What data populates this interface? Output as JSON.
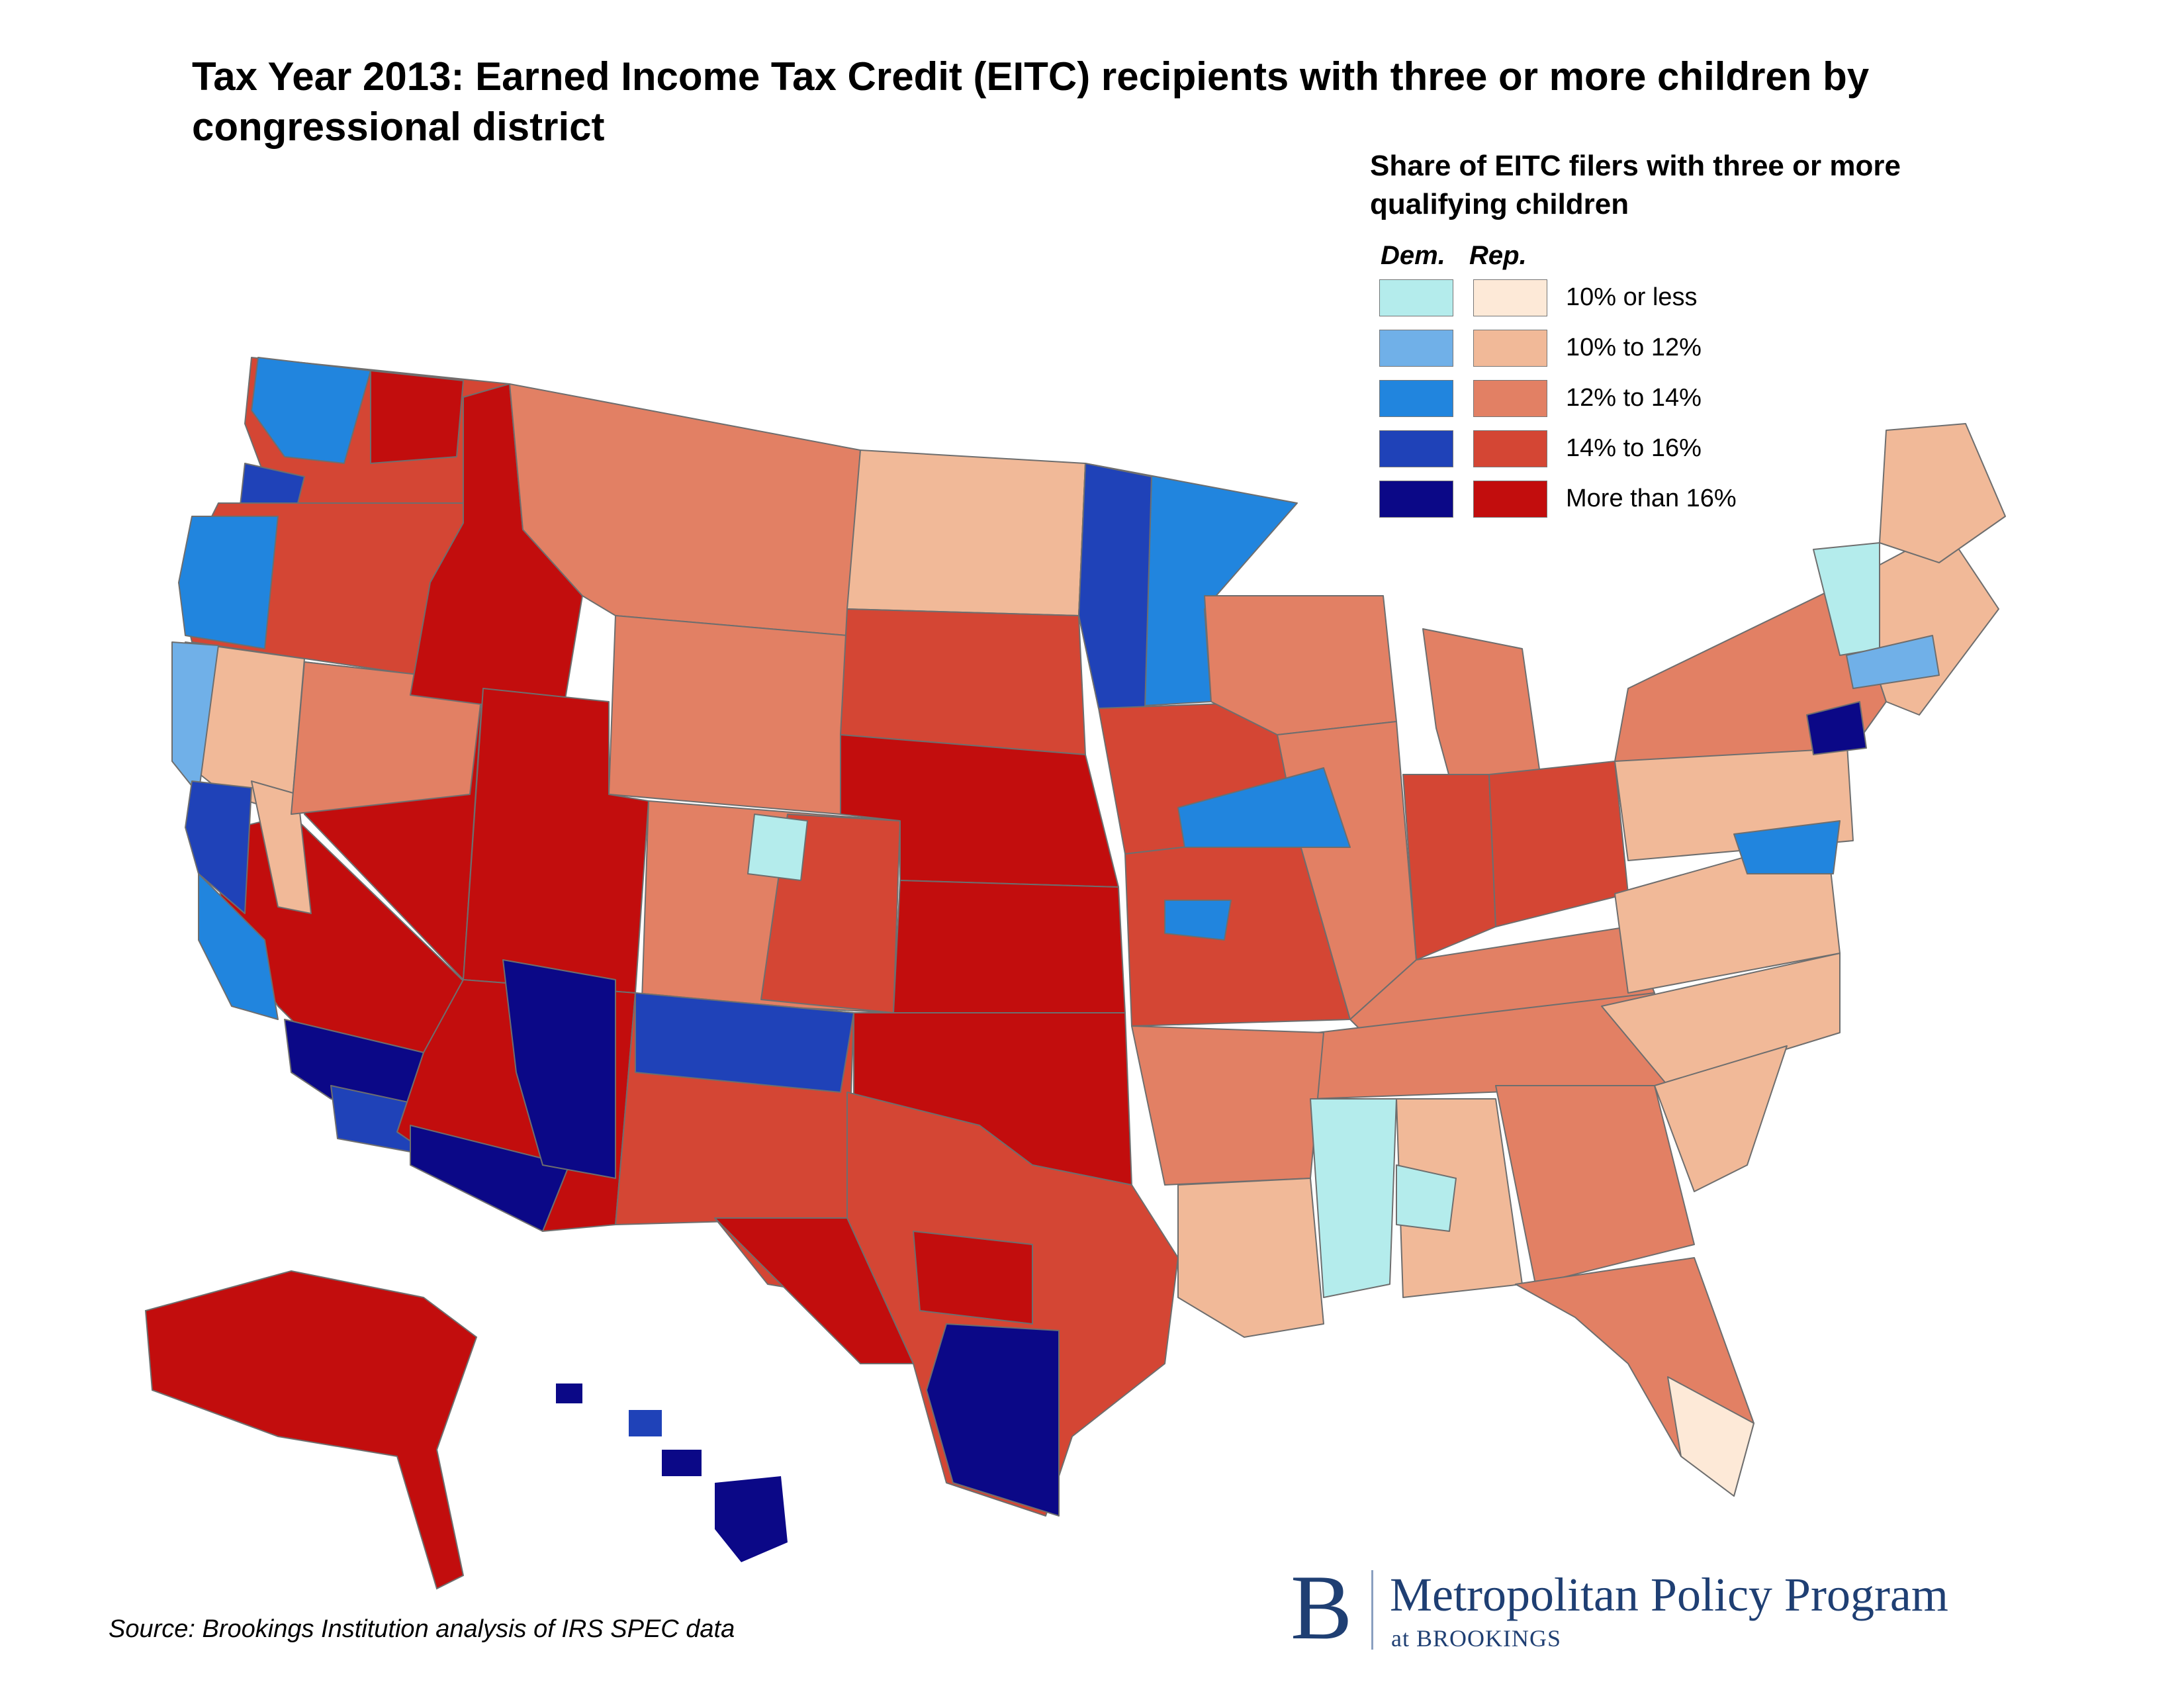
{
  "title": "Tax Year 2013: Earned Income Tax Credit (EITC) recipients with three or more children by congressional district",
  "legend": {
    "title": "Share of EITC filers with three or more qualifying children",
    "dem_label": "Dem.",
    "rep_label": "Rep.",
    "items": [
      {
        "label": "10% or less",
        "dem_color": "#b4ecec",
        "rep_color": "#fde9d7"
      },
      {
        "label": "10% to 12%",
        "dem_color": "#70b0e8",
        "rep_color": "#f1b998"
      },
      {
        "label": "12% to 14%",
        "dem_color": "#2185de",
        "rep_color": "#e28064"
      },
      {
        "label": "14% to 16%",
        "dem_color": "#1f42b8",
        "rep_color": "#d44634"
      },
      {
        "label": "More than 16%",
        "dem_color": "#0b0887",
        "rep_color": "#c20d0d"
      }
    ]
  },
  "map_regions": {
    "colors": {
      "dem_10_or_less": "#b4ecec",
      "dem_10_12": "#70b0e8",
      "dem_12_14": "#2185de",
      "dem_14_16": "#1f42b8",
      "dem_16_plus": "#0b0887",
      "rep_10_or_less": "#fde9d7",
      "rep_10_12": "#f1b998",
      "rep_12_14": "#e28064",
      "rep_14_16": "#d44634",
      "rep_16_plus": "#c20d0d",
      "border": "#6e6e6e"
    }
  },
  "source": "Source: Brookings Institution analysis of IRS SPEC data",
  "logo": {
    "mark": "B",
    "main": "Metropolitan Policy Program",
    "sub": "at BROOKINGS"
  }
}
